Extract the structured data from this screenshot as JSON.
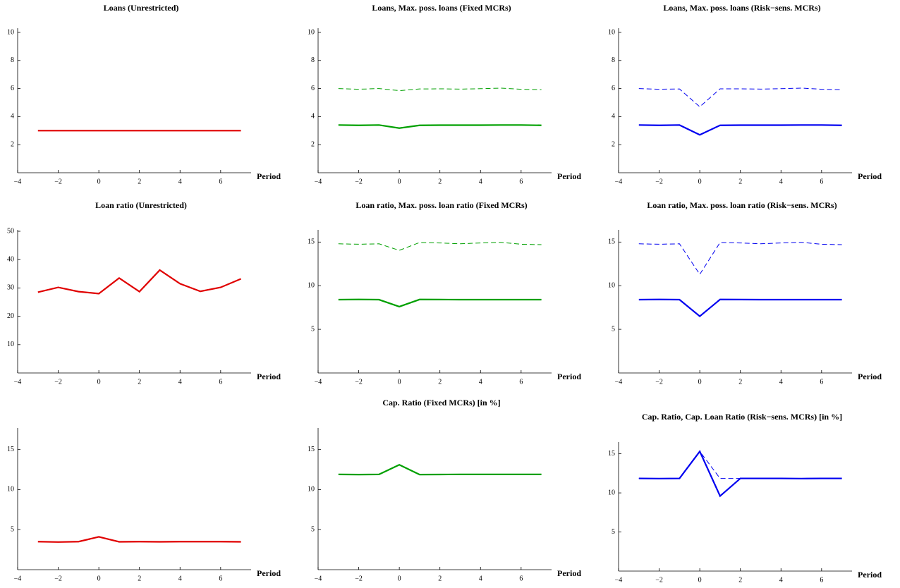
{
  "chart_data": [
    {
      "type": "line",
      "title": "Loans (Unrestricted)",
      "xlabel": "Period",
      "x": [
        -3,
        -2,
        -1,
        0,
        1,
        2,
        3,
        4,
        5,
        6,
        7
      ],
      "xlim": [
        -4,
        7.5
      ],
      "xticks": [
        {
          "value": -4,
          "label": "−4"
        },
        {
          "value": -2,
          "label": "−2"
        },
        0,
        2,
        4,
        6
      ],
      "ylim": [
        0,
        10.3
      ],
      "yticks": [
        2,
        4,
        6,
        8,
        10
      ],
      "series": [
        {
          "color": "#e00000",
          "linestyle": "solid",
          "values": [
            3,
            3,
            3,
            3,
            3,
            3,
            3,
            3,
            3,
            3,
            3
          ]
        }
      ]
    },
    {
      "type": "line",
      "title": "Loans, Max. poss. loans (Fixed MCRs)",
      "xlabel": "Period",
      "x": [
        -3,
        -2,
        -1,
        0,
        1,
        2,
        3,
        4,
        5,
        6,
        7
      ],
      "xlim": [
        -4,
        7.5
      ],
      "xticks": [
        {
          "value": -4,
          "label": "−4"
        },
        {
          "value": -2,
          "label": "−2"
        },
        0,
        2,
        4,
        6
      ],
      "ylim": [
        0,
        10.3
      ],
      "yticks": [
        2,
        4,
        6,
        8,
        10
      ],
      "series": [
        {
          "color": "#00a000",
          "linestyle": "dashed",
          "values": [
            6.0,
            5.95,
            6.0,
            5.85,
            5.97,
            5.98,
            5.96,
            5.99,
            6.03,
            5.95,
            5.92
          ]
        },
        {
          "color": "#00a000",
          "linestyle": "solid",
          "values": [
            3.4,
            3.38,
            3.4,
            3.18,
            3.38,
            3.39,
            3.39,
            3.39,
            3.4,
            3.4,
            3.38
          ]
        }
      ]
    },
    {
      "type": "line",
      "title": "Loans, Max. poss. loans (Risk−sens. MCRs)",
      "xlabel": "Period",
      "x": [
        -3,
        -2,
        -1,
        0,
        1,
        2,
        3,
        4,
        5,
        6,
        7
      ],
      "xlim": [
        -4,
        7.5
      ],
      "xticks": [
        {
          "value": -4,
          "label": "−4"
        },
        {
          "value": -2,
          "label": "−2"
        },
        0,
        2,
        4,
        6
      ],
      "ylim": [
        0,
        10.3
      ],
      "yticks": [
        2,
        4,
        6,
        8,
        10
      ],
      "series": [
        {
          "color": "#0000f0",
          "linestyle": "dashed",
          "values": [
            6.0,
            5.95,
            5.97,
            4.7,
            5.98,
            5.98,
            5.96,
            5.99,
            6.03,
            5.95,
            5.92
          ]
        },
        {
          "color": "#0000f0",
          "linestyle": "solid",
          "values": [
            3.4,
            3.38,
            3.4,
            2.7,
            3.38,
            3.39,
            3.39,
            3.39,
            3.4,
            3.4,
            3.38
          ]
        }
      ]
    },
    {
      "type": "line",
      "title": "Loan ratio (Unrestricted)",
      "xlabel": "Period",
      "x": [
        -3,
        -2,
        -1,
        0,
        1,
        2,
        3,
        4,
        5,
        6,
        7
      ],
      "xlim": [
        -4,
        7.5
      ],
      "xticks": [
        {
          "value": -4,
          "label": "−4"
        },
        {
          "value": -2,
          "label": "−2"
        },
        0,
        2,
        4,
        6
      ],
      "ylim": [
        0,
        50.5
      ],
      "yticks": [
        10,
        20,
        30,
        40,
        50
      ],
      "series": [
        {
          "color": "#e00000",
          "linestyle": "solid",
          "values": [
            28.5,
            30.2,
            28.7,
            28,
            33.5,
            28.7,
            36.3,
            31.5,
            28.8,
            30.2,
            33.2
          ]
        }
      ]
    },
    {
      "type": "line",
      "title": "Loan ratio, Max. poss. loan ratio (Fixed MCRs)",
      "xlabel": "Period",
      "x": [
        -3,
        -2,
        -1,
        0,
        1,
        2,
        3,
        4,
        5,
        6,
        7
      ],
      "xlim": [
        -4,
        7.5
      ],
      "xticks": [
        {
          "value": -4,
          "label": "−4"
        },
        {
          "value": -2,
          "label": "−2"
        },
        0,
        2,
        4,
        6
      ],
      "ylim": [
        0,
        16.4
      ],
      "yticks": [
        5,
        10,
        15
      ],
      "series": [
        {
          "color": "#00a000",
          "linestyle": "dashed",
          "values": [
            14.8,
            14.75,
            14.8,
            14.05,
            14.95,
            14.9,
            14.8,
            14.9,
            14.97,
            14.75,
            14.7
          ]
        },
        {
          "color": "#00a000",
          "linestyle": "solid",
          "values": [
            8.4,
            8.42,
            8.4,
            7.6,
            8.42,
            8.41,
            8.4,
            8.4,
            8.4,
            8.4,
            8.4
          ]
        }
      ]
    },
    {
      "type": "line",
      "title": "Loan ratio, Max. poss. loan ratio (Risk−sens. MCRs)",
      "xlabel": "Period",
      "x": [
        -3,
        -2,
        -1,
        0,
        1,
        2,
        3,
        4,
        5,
        6,
        7
      ],
      "xlim": [
        -4,
        7.5
      ],
      "xticks": [
        {
          "value": -4,
          "label": "−4"
        },
        {
          "value": -2,
          "label": "−2"
        },
        0,
        2,
        4,
        6
      ],
      "ylim": [
        0,
        16.4
      ],
      "yticks": [
        5,
        10,
        15
      ],
      "series": [
        {
          "color": "#0000f0",
          "linestyle": "dashed",
          "values": [
            14.8,
            14.75,
            14.8,
            11.3,
            14.95,
            14.9,
            14.8,
            14.9,
            14.97,
            14.75,
            14.7
          ]
        },
        {
          "color": "#0000f0",
          "linestyle": "solid",
          "values": [
            8.4,
            8.42,
            8.4,
            6.5,
            8.42,
            8.41,
            8.4,
            8.4,
            8.4,
            8.4,
            8.4
          ]
        }
      ]
    },
    {
      "type": "line",
      "xlabel": "Period",
      "x": [
        -3,
        -2,
        -1,
        0,
        1,
        2,
        3,
        4,
        5,
        6,
        7
      ],
      "xlim": [
        -4,
        7.5
      ],
      "xticks": [
        {
          "value": -4,
          "label": "−4"
        },
        {
          "value": -2,
          "label": "−2"
        },
        0,
        2,
        4,
        6
      ],
      "ylim": [
        0,
        17.7
      ],
      "yticks": [
        5,
        10,
        15
      ],
      "series": [
        {
          "color": "#e00000",
          "linestyle": "solid",
          "values": [
            3.5,
            3.45,
            3.5,
            4.1,
            3.48,
            3.5,
            3.48,
            3.5,
            3.5,
            3.5,
            3.48
          ]
        }
      ]
    },
    {
      "type": "line",
      "title": "Cap. Ratio (Fixed MCRs) [in %]",
      "xlabel": "Period",
      "x": [
        -3,
        -2,
        -1,
        0,
        1,
        2,
        3,
        4,
        5,
        6,
        7
      ],
      "xlim": [
        -4,
        7.5
      ],
      "xticks": [
        {
          "value": -4,
          "label": "−4"
        },
        {
          "value": -2,
          "label": "−2"
        },
        0,
        2,
        4,
        6
      ],
      "ylim": [
        0,
        17.7
      ],
      "yticks": [
        5,
        10,
        15
      ],
      "series": [
        {
          "color": "#00a000",
          "linestyle": "solid",
          "values": [
            11.9,
            11.88,
            11.9,
            13.1,
            11.88,
            11.89,
            11.9,
            11.9,
            11.9,
            11.9,
            11.9
          ]
        }
      ]
    },
    {
      "type": "line",
      "title": "Cap. Ratio, Cap. Loan Ratio (Risk−sens. MCRs) [in %]",
      "xlabel": "Period",
      "x": [
        -3,
        -2,
        -1,
        0,
        1,
        2,
        3,
        4,
        5,
        6,
        7
      ],
      "xlim": [
        -4,
        7.5
      ],
      "xticks": [
        {
          "value": -4,
          "label": "−4"
        },
        {
          "value": -2,
          "label": "−2"
        },
        0,
        2,
        4,
        6
      ],
      "ylim": [
        0,
        16.5
      ],
      "yticks": [
        5,
        10,
        15
      ],
      "series": [
        {
          "color": "#0000f0",
          "linestyle": "dashed",
          "values": [
            11.85,
            11.83,
            11.85,
            15.3,
            11.85,
            11.85,
            11.85,
            11.85,
            11.83,
            11.85,
            11.85
          ]
        },
        {
          "color": "#0000f0",
          "linestyle": "solid",
          "values": [
            11.85,
            11.83,
            11.85,
            15.3,
            9.6,
            11.85,
            11.85,
            11.85,
            11.83,
            11.85,
            11.85
          ]
        }
      ]
    }
  ]
}
